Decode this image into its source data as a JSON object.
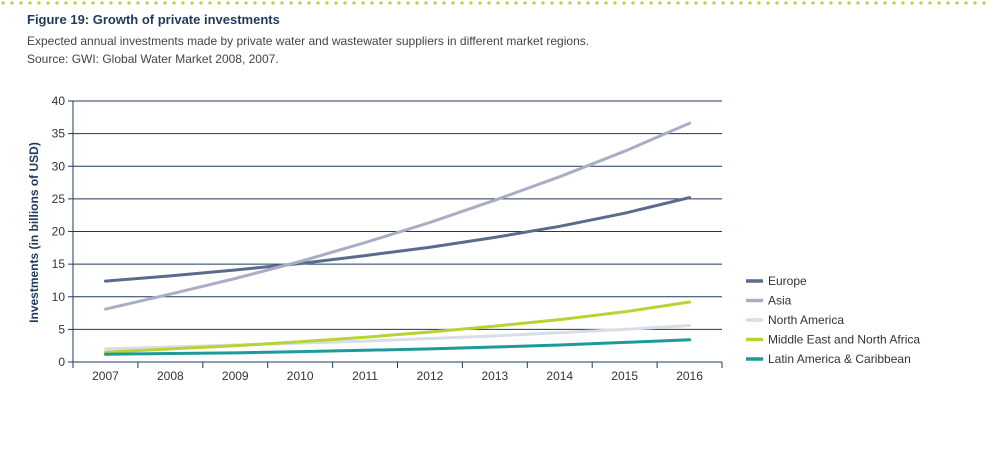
{
  "figure": {
    "title": "Figure 19: Growth of private investments",
    "subtitle": "Expected annual investments made by private water and wastewater suppliers in different market regions.",
    "source": "Source: GWI: Global Water Market 2008, 2007."
  },
  "colors": {
    "dotted_rule": "#b7d334",
    "axis": "#1f3a5a",
    "grid": "#1f3a5a"
  },
  "chart_data": {
    "type": "line",
    "title": "",
    "xlabel": "",
    "ylabel": "Investments (in billions of USD)",
    "x": [
      "2007",
      "2008",
      "2009",
      "2010",
      "2011",
      "2012",
      "2013",
      "2014",
      "2015",
      "2016"
    ],
    "ylim": [
      0,
      40
    ],
    "yticks": [
      0,
      5,
      10,
      15,
      20,
      25,
      30,
      35,
      40
    ],
    "grid": true,
    "legend_position": "right",
    "series": [
      {
        "name": "Europe",
        "color": "#5a6b8c",
        "values": [
          12.4,
          13.2,
          14.1,
          15.1,
          16.3,
          17.6,
          19.1,
          20.8,
          22.8,
          25.2
        ]
      },
      {
        "name": "Asia",
        "color": "#a9aec4",
        "values": [
          8.1,
          10.4,
          12.8,
          15.4,
          18.3,
          21.4,
          24.8,
          28.4,
          32.3,
          36.6
        ]
      },
      {
        "name": "North America",
        "color": "#d9dde6",
        "values": [
          2.0,
          2.3,
          2.6,
          2.9,
          3.2,
          3.6,
          4.0,
          4.5,
          5.0,
          5.6
        ]
      },
      {
        "name": "Middle East and North Africa",
        "color": "#b7d334",
        "values": [
          1.5,
          2.0,
          2.5,
          3.1,
          3.8,
          4.6,
          5.5,
          6.5,
          7.7,
          9.2
        ]
      },
      {
        "name": "Latin America & Caribbean",
        "color": "#1e9a99",
        "values": [
          1.2,
          1.3,
          1.4,
          1.6,
          1.8,
          2.0,
          2.3,
          2.6,
          3.0,
          3.4
        ]
      }
    ]
  }
}
